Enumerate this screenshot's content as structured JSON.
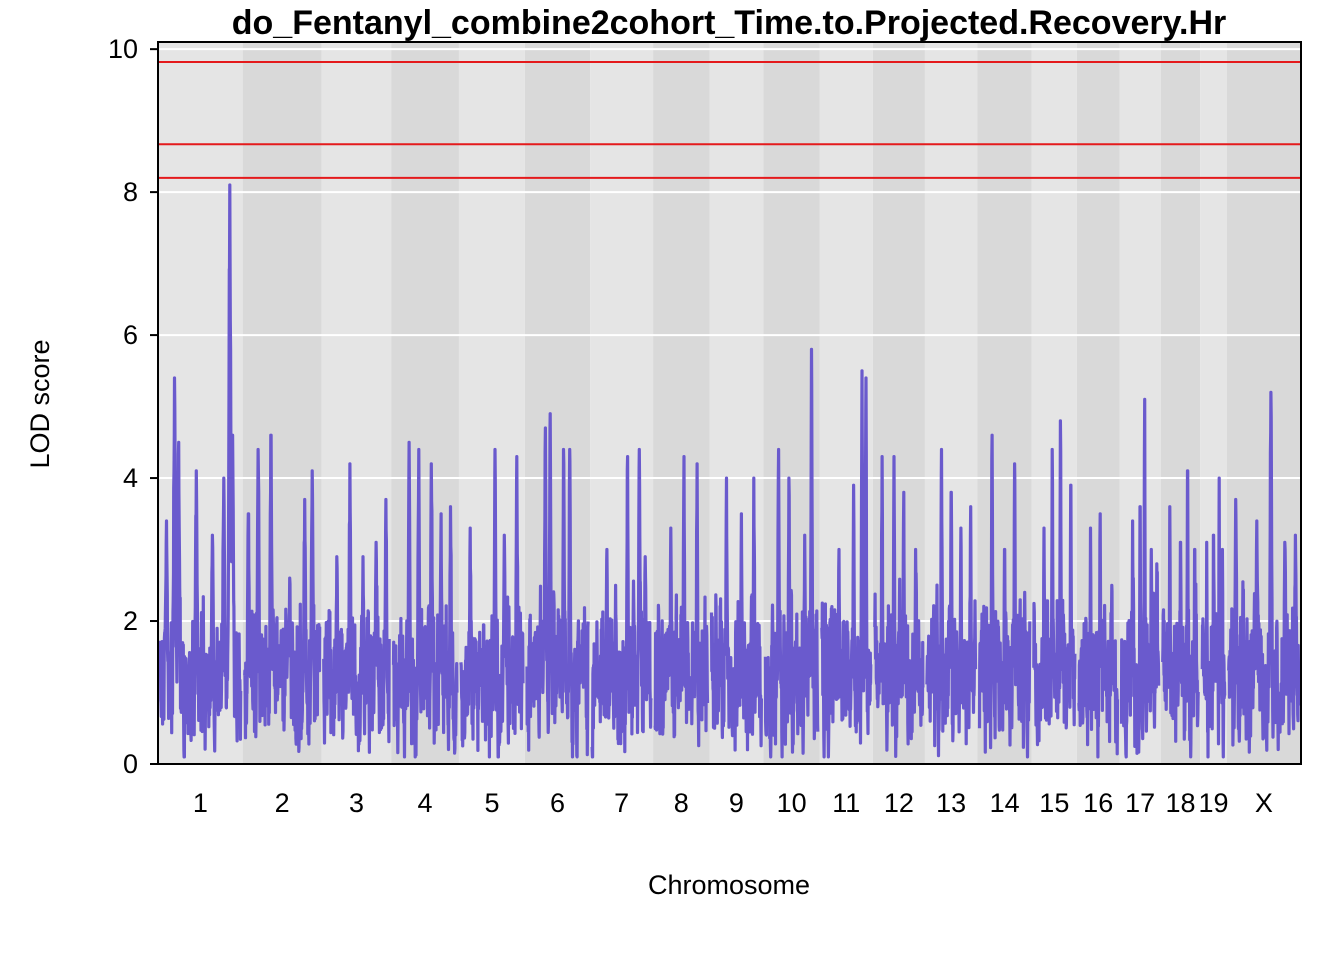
{
  "chart_data": {
    "type": "line",
    "title": "do_Fentanyl_combine2cohort_Time.to.Projected.Recovery.Hr",
    "xlabel": "Chromosome",
    "ylabel": "LOD score",
    "ylim": [
      0,
      10.1
    ],
    "y_ticks": [
      0,
      2,
      4,
      6,
      8,
      10
    ],
    "grid": true,
    "threshold_lines": [
      8.2,
      8.67,
      9.82
    ],
    "colors": {
      "line": "#6A5ACD",
      "threshold": "#E41A1C",
      "band_light": "#E5E5E5",
      "band_dark": "#D9D9D9",
      "gridline": "#FFFFFF"
    },
    "chromosomes": [
      {
        "label": "1",
        "length": 195,
        "peaks": [
          {
            "pos": 0.08,
            "lod": 3.4
          },
          {
            "pos": 0.18,
            "lod": 5.4
          },
          {
            "pos": 0.23,
            "lod": 4.5
          },
          {
            "pos": 0.45,
            "lod": 4.1
          },
          {
            "pos": 0.65,
            "lod": 3.2
          },
          {
            "pos": 0.79,
            "lod": 4.0
          },
          {
            "pos": 0.865,
            "lod": 8.1
          },
          {
            "pos": 0.87,
            "lod": 6.2
          },
          {
            "pos": 0.9,
            "lod": 4.6
          }
        ]
      },
      {
        "label": "2",
        "length": 182,
        "peaks": [
          {
            "pos": 0.05,
            "lod": 3.5
          },
          {
            "pos": 0.18,
            "lod": 4.4
          },
          {
            "pos": 0.35,
            "lod": 4.6
          },
          {
            "pos": 0.6,
            "lod": 2.6
          },
          {
            "pos": 0.8,
            "lod": 3.7
          },
          {
            "pos": 0.9,
            "lod": 4.1
          }
        ]
      },
      {
        "label": "3",
        "length": 160,
        "peaks": [
          {
            "pos": 0.2,
            "lod": 2.9
          },
          {
            "pos": 0.4,
            "lod": 4.2
          },
          {
            "pos": 0.6,
            "lod": 2.9
          },
          {
            "pos": 0.8,
            "lod": 3.1
          },
          {
            "pos": 0.95,
            "lod": 3.7
          }
        ]
      },
      {
        "label": "4",
        "length": 156,
        "peaks": [
          {
            "pos": 0.25,
            "lod": 4.5
          },
          {
            "pos": 0.4,
            "lod": 4.4
          },
          {
            "pos": 0.6,
            "lod": 4.2
          },
          {
            "pos": 0.75,
            "lod": 3.5
          },
          {
            "pos": 0.9,
            "lod": 3.6
          }
        ]
      },
      {
        "label": "5",
        "length": 152,
        "peaks": [
          {
            "pos": 0.15,
            "lod": 3.3
          },
          {
            "pos": 0.55,
            "lod": 4.4
          },
          {
            "pos": 0.7,
            "lod": 3.2
          },
          {
            "pos": 0.9,
            "lod": 4.3
          }
        ]
      },
      {
        "label": "6",
        "length": 150,
        "peaks": [
          {
            "pos": 0.3,
            "lod": 4.7
          },
          {
            "pos": 0.38,
            "lod": 4.9
          },
          {
            "pos": 0.6,
            "lod": 4.4
          },
          {
            "pos": 0.7,
            "lod": 4.4
          }
        ]
      },
      {
        "label": "7",
        "length": 145,
        "peaks": [
          {
            "pos": 0.25,
            "lod": 3.0
          },
          {
            "pos": 0.4,
            "lod": 2.5
          },
          {
            "pos": 0.6,
            "lod": 4.3
          },
          {
            "pos": 0.8,
            "lod": 4.4
          },
          {
            "pos": 0.9,
            "lod": 2.9
          }
        ]
      },
      {
        "label": "8",
        "length": 130,
        "peaks": [
          {
            "pos": 0.3,
            "lod": 3.3
          },
          {
            "pos": 0.55,
            "lod": 4.3
          },
          {
            "pos": 0.8,
            "lod": 4.2
          }
        ]
      },
      {
        "label": "9",
        "length": 124,
        "peaks": [
          {
            "pos": 0.3,
            "lod": 4.0
          },
          {
            "pos": 0.6,
            "lod": 3.5
          },
          {
            "pos": 0.85,
            "lod": 4.0
          }
        ]
      },
      {
        "label": "10",
        "length": 130,
        "peaks": [
          {
            "pos": 0.25,
            "lod": 4.4
          },
          {
            "pos": 0.45,
            "lod": 4.0
          },
          {
            "pos": 0.75,
            "lod": 3.2
          },
          {
            "pos": 0.88,
            "lod": 5.8
          }
        ]
      },
      {
        "label": "11",
        "length": 122,
        "peaks": [
          {
            "pos": 0.35,
            "lod": 3.0
          },
          {
            "pos": 0.65,
            "lod": 3.9
          },
          {
            "pos": 0.82,
            "lod": 5.5
          },
          {
            "pos": 0.9,
            "lod": 5.4
          }
        ]
      },
      {
        "label": "12",
        "length": 120,
        "peaks": [
          {
            "pos": 0.15,
            "lod": 4.3
          },
          {
            "pos": 0.4,
            "lod": 4.3
          },
          {
            "pos": 0.6,
            "lod": 3.8
          },
          {
            "pos": 0.85,
            "lod": 3.0
          }
        ]
      },
      {
        "label": "13",
        "length": 121,
        "peaks": [
          {
            "pos": 0.3,
            "lod": 4.4
          },
          {
            "pos": 0.5,
            "lod": 3.8
          },
          {
            "pos": 0.7,
            "lod": 3.3
          },
          {
            "pos": 0.9,
            "lod": 3.6
          }
        ]
      },
      {
        "label": "14",
        "length": 125,
        "peaks": [
          {
            "pos": 0.25,
            "lod": 4.6
          },
          {
            "pos": 0.5,
            "lod": 3.0
          },
          {
            "pos": 0.7,
            "lod": 4.2
          },
          {
            "pos": 0.9,
            "lod": 2.4
          }
        ]
      },
      {
        "label": "15",
        "length": 104,
        "peaks": [
          {
            "pos": 0.25,
            "lod": 3.3
          },
          {
            "pos": 0.45,
            "lod": 4.4
          },
          {
            "pos": 0.65,
            "lod": 4.8
          },
          {
            "pos": 0.9,
            "lod": 3.9
          }
        ]
      },
      {
        "label": "16",
        "length": 98,
        "peaks": [
          {
            "pos": 0.3,
            "lod": 3.3
          },
          {
            "pos": 0.55,
            "lod": 3.5
          },
          {
            "pos": 0.85,
            "lod": 2.5
          }
        ]
      },
      {
        "label": "17",
        "length": 95,
        "peaks": [
          {
            "pos": 0.3,
            "lod": 3.4
          },
          {
            "pos": 0.5,
            "lod": 3.6
          },
          {
            "pos": 0.62,
            "lod": 5.1
          },
          {
            "pos": 0.8,
            "lod": 3.0
          },
          {
            "pos": 0.95,
            "lod": 2.8
          }
        ]
      },
      {
        "label": "18",
        "length": 91,
        "peaks": [
          {
            "pos": 0.2,
            "lod": 3.6
          },
          {
            "pos": 0.5,
            "lod": 3.1
          },
          {
            "pos": 0.7,
            "lod": 4.1
          },
          {
            "pos": 0.9,
            "lod": 3.0
          }
        ]
      },
      {
        "label": "19",
        "length": 61,
        "peaks": [
          {
            "pos": 0.2,
            "lod": 3.1
          },
          {
            "pos": 0.5,
            "lod": 3.2
          },
          {
            "pos": 0.75,
            "lod": 4.0
          },
          {
            "pos": 0.9,
            "lod": 3.0
          }
        ]
      },
      {
        "label": "X",
        "length": 171,
        "peaks": [
          {
            "pos": 0.1,
            "lod": 3.7
          },
          {
            "pos": 0.4,
            "lod": 3.4
          },
          {
            "pos": 0.6,
            "lod": 5.2
          },
          {
            "pos": 0.8,
            "lod": 3.1
          },
          {
            "pos": 0.95,
            "lod": 3.2
          }
        ]
      }
    ]
  }
}
